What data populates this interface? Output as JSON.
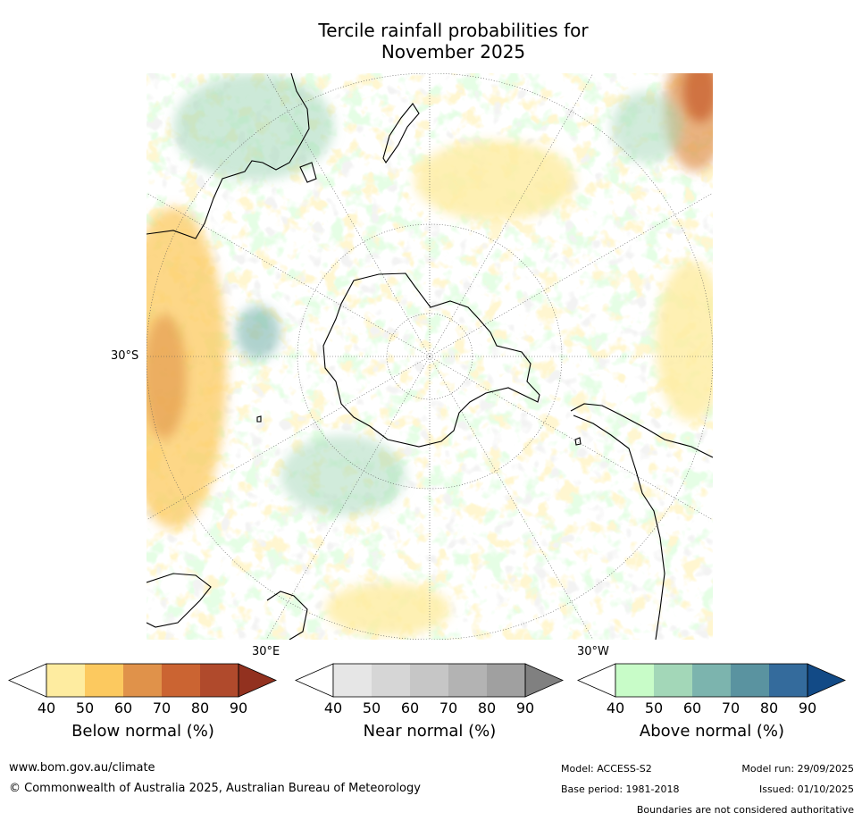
{
  "title": {
    "line1": "Tercile rainfall probabilities for",
    "line2": "November 2025"
  },
  "map": {
    "lat_label": "30°S",
    "lon_label_east": "30°E",
    "lon_label_west": "30°W"
  },
  "colorbars": [
    {
      "id": "below",
      "label": "Below normal (%)",
      "ticks": [
        "40",
        "50",
        "60",
        "70",
        "80",
        "90"
      ],
      "colors": [
        "#ffffff",
        "#feeca0",
        "#fcc95f",
        "#e0924a",
        "#cb6432",
        "#b04a2c",
        "#92311f"
      ]
    },
    {
      "id": "near",
      "label": "Near normal (%)",
      "ticks": [
        "40",
        "50",
        "60",
        "70",
        "80",
        "90"
      ],
      "colors": [
        "#ffffff",
        "#e6e6e6",
        "#d6d6d6",
        "#c6c6c6",
        "#b3b3b3",
        "#a0a0a0",
        "#808080"
      ]
    },
    {
      "id": "above",
      "label": "Above normal (%)",
      "ticks": [
        "40",
        "50",
        "60",
        "70",
        "80",
        "90"
      ],
      "colors": [
        "#ffffff",
        "#c8fcc8",
        "#a3d7b8",
        "#7cb4ae",
        "#5a93a0",
        "#346b9c",
        "#124a86"
      ]
    }
  ],
  "footer": {
    "url": "www.bom.gov.au/climate",
    "copyright": "© Commonwealth of Australia 2025, Australian Bureau of Meteorology",
    "model": "Model: ACCESS-S2",
    "model_run": "Model run: 29/09/2025",
    "base_period": "Base period: 1981-2018",
    "issued": "Issued: 01/10/2025",
    "disclaimer": "Boundaries are not considered authoritative"
  }
}
